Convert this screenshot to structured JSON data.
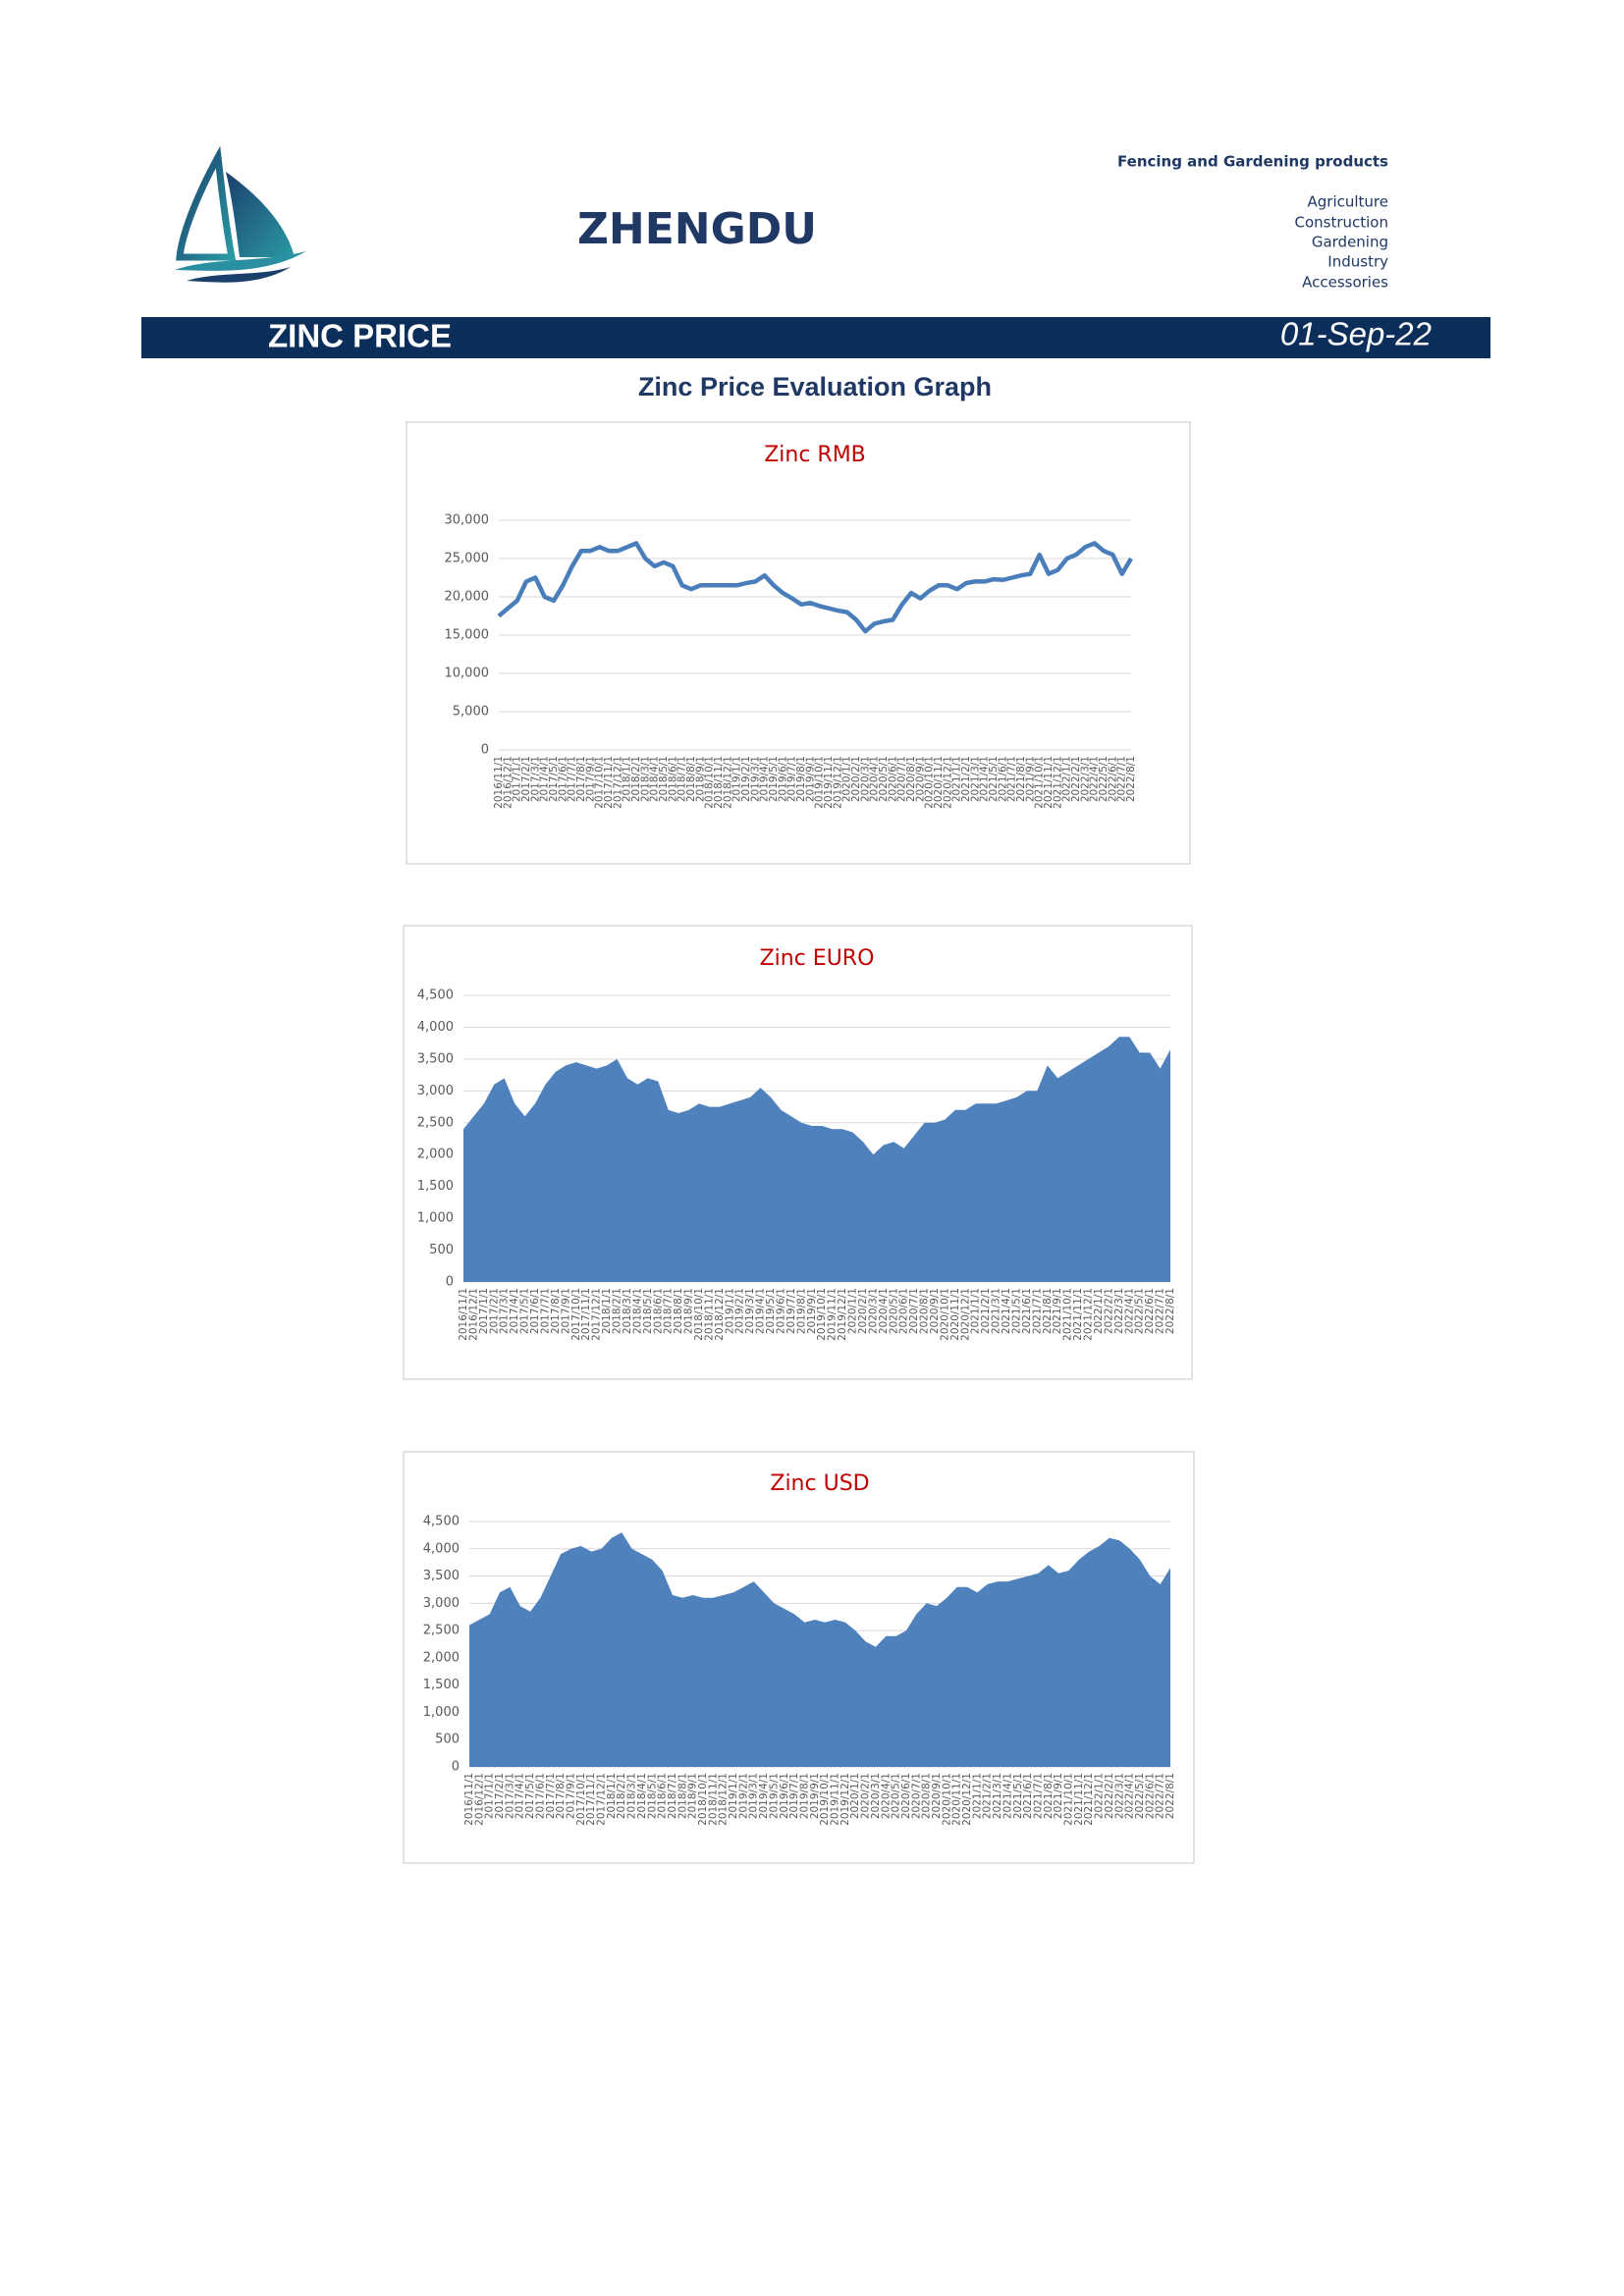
{
  "header": {
    "brand": "ZHENGDU",
    "tagline": "Fencing and Gardening products",
    "categories": [
      "Agriculture",
      "Construction",
      "Gardening",
      "Industry",
      "Accessories"
    ]
  },
  "banner": {
    "title": "ZINC PRICE",
    "date": "01-Sep-22"
  },
  "section_title": "Zinc Price Evaluation Graph",
  "chart_data": [
    {
      "type": "line",
      "title": "Zinc RMB",
      "color": "#4a7ebb",
      "grid": true,
      "categories": [
        "2016/11/1",
        "2016/12/1",
        "2017/1/1",
        "2017/2/1",
        "2017/3/1",
        "2017/4/1",
        "2017/5/1",
        "2017/6/1",
        "2017/7/1",
        "2017/8/1",
        "2017/9/1",
        "2017/10/1",
        "2017/11/1",
        "2017/12/1",
        "2018/1/1",
        "2018/2/1",
        "2018/3/1",
        "2018/4/1",
        "2018/5/1",
        "2018/6/1",
        "2018/7/1",
        "2018/8/1",
        "2018/9/1",
        "2018/10/1",
        "2018/11/1",
        "2018/12/1",
        "2019/1/1",
        "2019/2/1",
        "2019/3/1",
        "2019/4/1",
        "2019/5/1",
        "2019/6/1",
        "2019/7/1",
        "2019/8/1",
        "2019/9/1",
        "2019/10/1",
        "2019/11/1",
        "2019/12/1",
        "2020/1/1",
        "2020/2/1",
        "2020/3/1",
        "2020/4/1",
        "2020/5/1",
        "2020/6/1",
        "2020/7/1",
        "2020/8/1",
        "2020/9/1",
        "2020/10/1",
        "2020/11/1",
        "2020/12/1",
        "2021/1/1",
        "2021/2/1",
        "2021/3/1",
        "2021/4/1",
        "2021/5/1",
        "2021/6/1",
        "2021/7/1",
        "2021/8/1",
        "2021/9/1",
        "2021/10/1",
        "2021/11/1",
        "2021/12/1",
        "2022/1/1",
        "2022/2/1",
        "2022/3/1",
        "2022/4/1",
        "2022/5/1",
        "2022/6/1",
        "2022/7/1",
        "2022/8/1"
      ],
      "values": [
        17500,
        18500,
        19500,
        22000,
        22500,
        20000,
        19500,
        21500,
        24000,
        26000,
        26000,
        26500,
        26000,
        26000,
        26500,
        27000,
        25000,
        24000,
        24500,
        24000,
        21500,
        21000,
        21500,
        21500,
        21500,
        21500,
        21500,
        21800,
        22000,
        22800,
        21500,
        20500,
        19800,
        19000,
        19200,
        18800,
        18500,
        18200,
        18000,
        17000,
        15500,
        16500,
        16800,
        17000,
        19000,
        20500,
        19800,
        20800,
        21500,
        21500,
        21000,
        21800,
        22000,
        22000,
        22300,
        22200,
        22500,
        22800,
        23000,
        25500,
        23000,
        23500,
        25000,
        25500,
        26500,
        27000,
        26000,
        25500,
        23000,
        25000
      ],
      "ylim": [
        0,
        30000
      ],
      "yticks": [
        0,
        {
          "value": 5000,
          "label": "5,000"
        },
        {
          "value": 10000,
          "label": "10,000"
        },
        {
          "value": 15000,
          "label": "15,000"
        },
        {
          "value": 20000,
          "label": "20,000"
        },
        {
          "value": 25000,
          "label": "25,000"
        },
        {
          "value": 30000,
          "label": "30,000"
        }
      ]
    },
    {
      "type": "area",
      "title": "Zinc EURO",
      "color": "#4f81bd",
      "grid": true,
      "categories": [
        "2016/11/1",
        "2016/12/1",
        "2017/1/1",
        "2017/2/1",
        "2017/3/1",
        "2017/4/1",
        "2017/5/1",
        "2017/6/1",
        "2017/7/1",
        "2017/8/1",
        "2017/9/1",
        "2017/10/1",
        "2017/11/1",
        "2017/12/1",
        "2018/1/1",
        "2018/2/1",
        "2018/3/1",
        "2018/4/1",
        "2018/5/1",
        "2018/6/1",
        "2018/7/1",
        "2018/8/1",
        "2018/9/1",
        "2018/10/1",
        "2018/11/1",
        "2018/12/1",
        "2019/1/1",
        "2019/2/1",
        "2019/3/1",
        "2019/4/1",
        "2019/5/1",
        "2019/6/1",
        "2019/7/1",
        "2019/8/1",
        "2019/9/1",
        "2019/10/1",
        "2019/11/1",
        "2019/12/1",
        "2020/1/1",
        "2020/2/1",
        "2020/3/1",
        "2020/4/1",
        "2020/5/1",
        "2020/6/1",
        "2020/7/1",
        "2020/8/1",
        "2020/9/1",
        "2020/10/1",
        "2020/11/1",
        "2020/12/1",
        "2021/1/1",
        "2021/2/1",
        "2021/3/1",
        "2021/4/1",
        "2021/5/1",
        "2021/6/1",
        "2021/7/1",
        "2021/8/1",
        "2021/9/1",
        "2021/10/1",
        "2021/11/1",
        "2021/12/1",
        "2022/1/1",
        "2022/2/1",
        "2022/3/1",
        "2022/4/1",
        "2022/5/1",
        "2022/6/1",
        "2022/7/1",
        "2022/8/1"
      ],
      "values": [
        2400,
        2600,
        2800,
        3100,
        3200,
        2800,
        2600,
        2800,
        3100,
        3300,
        3400,
        3450,
        3400,
        3350,
        3400,
        3500,
        3200,
        3100,
        3200,
        3150,
        2700,
        2650,
        2700,
        2800,
        2750,
        2750,
        2800,
        2850,
        2900,
        3050,
        2900,
        2700,
        2600,
        2500,
        2450,
        2450,
        2400,
        2400,
        2350,
        2200,
        2000,
        2150,
        2200,
        2100,
        2300,
        2500,
        2500,
        2550,
        2700,
        2700,
        2800,
        2800,
        2800,
        2850,
        2900,
        3000,
        3000,
        3400,
        3200,
        3300,
        3400,
        3500,
        3600,
        3700,
        3850,
        3850,
        3600,
        3600,
        3350,
        3650
      ],
      "ylim": [
        0,
        4500
      ],
      "yticks": [
        0,
        500,
        {
          "value": 1000,
          "label": "1,000"
        },
        {
          "value": 1500,
          "label": "1,500"
        },
        {
          "value": 2000,
          "label": "2,000"
        },
        {
          "value": 2500,
          "label": "2,500"
        },
        {
          "value": 3000,
          "label": "3,000"
        },
        {
          "value": 3500,
          "label": "3,500"
        },
        {
          "value": 4000,
          "label": "4,000"
        },
        {
          "value": 4500,
          "label": "4,500"
        }
      ]
    },
    {
      "type": "area",
      "title": "Zinc USD",
      "color": "#4f81bd",
      "grid": true,
      "categories": [
        "2016/11/1",
        "2016/12/1",
        "2017/1/1",
        "2017/2/1",
        "2017/3/1",
        "2017/4/1",
        "2017/5/1",
        "2017/6/1",
        "2017/7/1",
        "2017/8/1",
        "2017/9/1",
        "2017/10/1",
        "2017/11/1",
        "2017/12/1",
        "2018/1/1",
        "2018/2/1",
        "2018/3/1",
        "2018/4/1",
        "2018/5/1",
        "2018/6/1",
        "2018/7/1",
        "2018/8/1",
        "2018/9/1",
        "2018/10/1",
        "2018/11/1",
        "2018/12/1",
        "2019/1/1",
        "2019/2/1",
        "2019/3/1",
        "2019/4/1",
        "2019/5/1",
        "2019/6/1",
        "2019/7/1",
        "2019/8/1",
        "2019/9/1",
        "2019/10/1",
        "2019/11/1",
        "2019/12/1",
        "2020/1/1",
        "2020/2/1",
        "2020/3/1",
        "2020/4/1",
        "2020/5/1",
        "2020/6/1",
        "2020/7/1",
        "2020/8/1",
        "2020/9/1",
        "2020/10/1",
        "2020/11/1",
        "2020/12/1",
        "2021/1/1",
        "2021/2/1",
        "2021/3/1",
        "2021/4/1",
        "2021/5/1",
        "2021/6/1",
        "2021/7/1",
        "2021/8/1",
        "2021/9/1",
        "2021/10/1",
        "2021/11/1",
        "2021/12/1",
        "2022/1/1",
        "2022/2/1",
        "2022/3/1",
        "2022/4/1",
        "2022/5/1",
        "2022/6/1",
        "2022/7/1",
        "2022/8/1"
      ],
      "values": [
        2600,
        2700,
        2800,
        3200,
        3300,
        2950,
        2850,
        3100,
        3500,
        3900,
        4000,
        4050,
        3950,
        4000,
        4200,
        4300,
        4000,
        3900,
        3800,
        3600,
        3150,
        3100,
        3150,
        3100,
        3100,
        3150,
        3200,
        3300,
        3400,
        3200,
        3000,
        2900,
        2800,
        2650,
        2700,
        2650,
        2700,
        2650,
        2500,
        2300,
        2200,
        2400,
        2400,
        2500,
        2800,
        3000,
        2950,
        3100,
        3300,
        3300,
        3200,
        3350,
        3400,
        3400,
        3450,
        3500,
        3550,
        3700,
        3550,
        3600,
        3800,
        3950,
        4050,
        4200,
        4150,
        4000,
        3800,
        3500,
        3350,
        3650
      ],
      "ylim": [
        0,
        4500
      ],
      "yticks": [
        0,
        500,
        {
          "value": 1000,
          "label": "1,000"
        },
        {
          "value": 1500,
          "label": "1,500"
        },
        {
          "value": 2000,
          "label": "2,000"
        },
        {
          "value": 2500,
          "label": "2,500"
        },
        {
          "value": 3000,
          "label": "3,000"
        },
        {
          "value": 3500,
          "label": "3,500"
        },
        {
          "value": 4000,
          "label": "4,000"
        },
        {
          "value": 4500,
          "label": "4,500"
        }
      ]
    }
  ]
}
